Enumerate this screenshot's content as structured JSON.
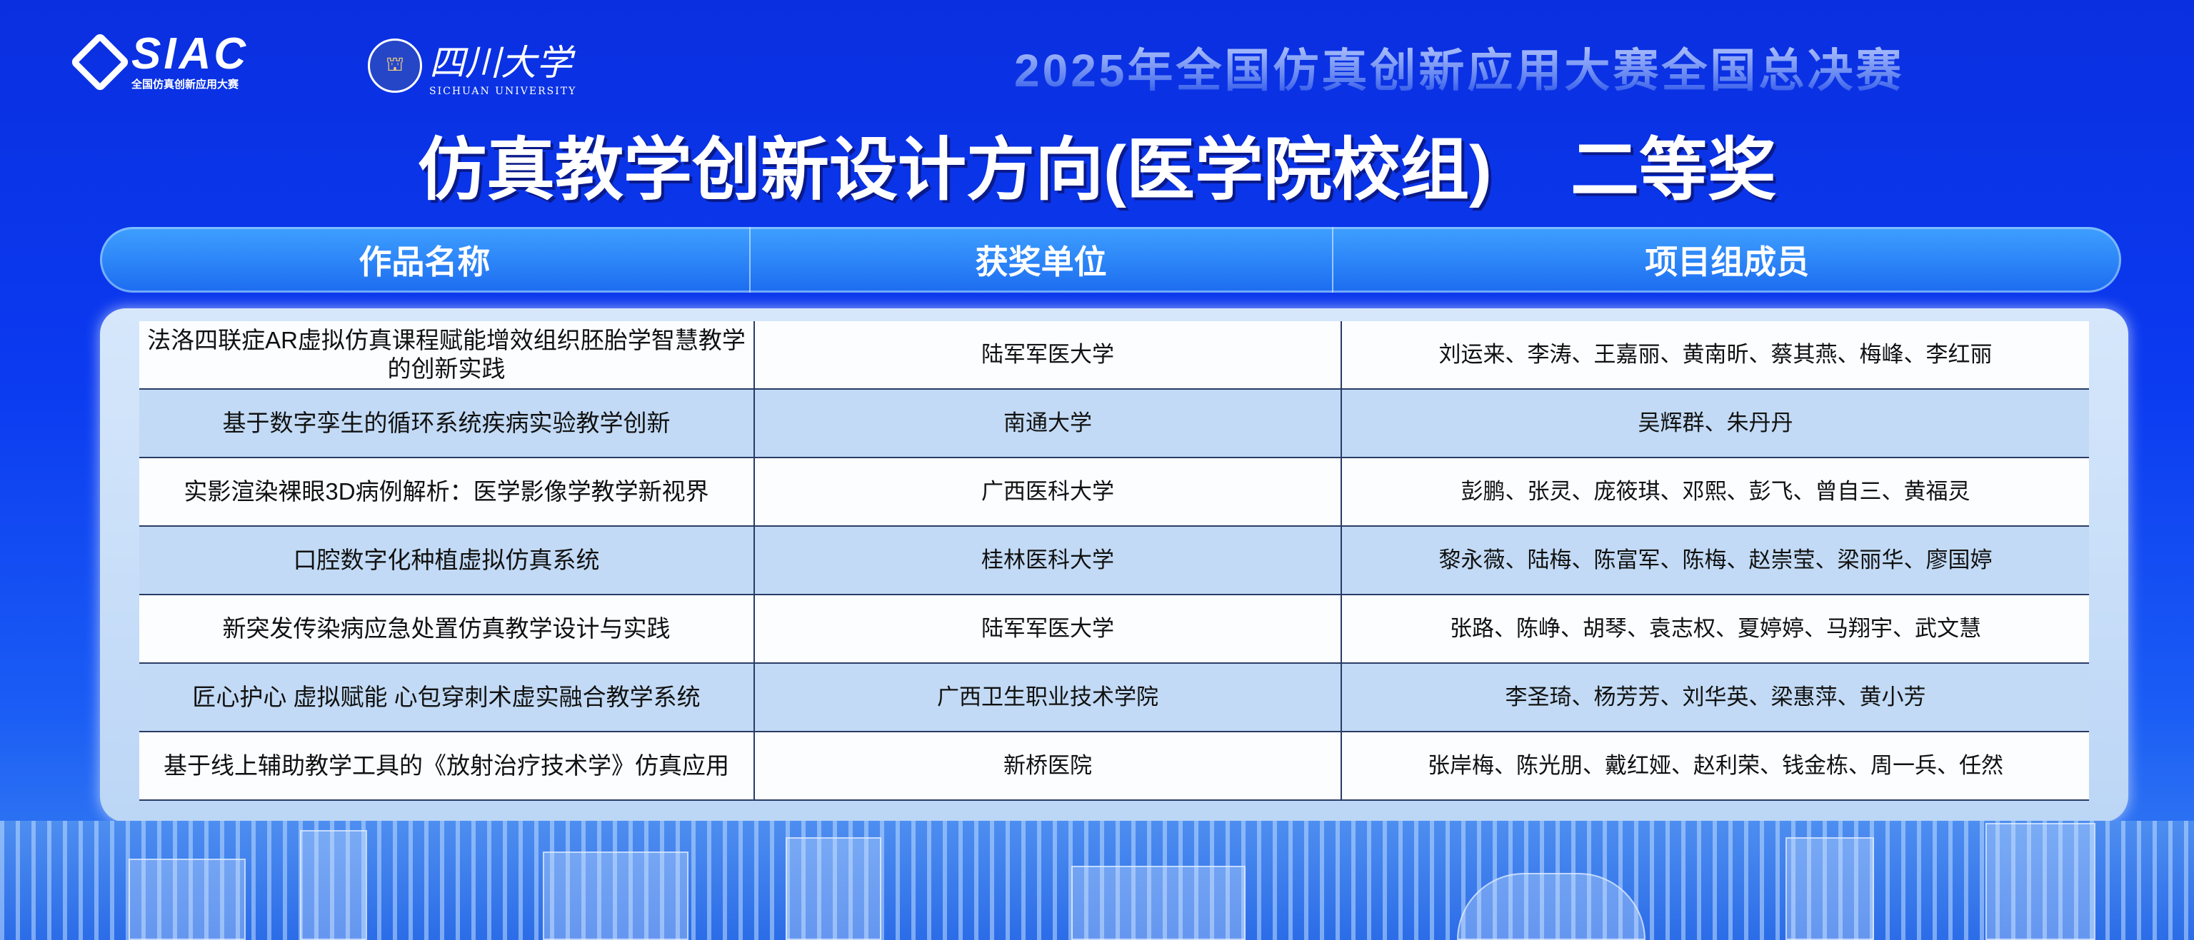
{
  "branding": {
    "siac_logo_text": "SIAC",
    "siac_logo_subtext": "全国仿真创新应用大赛",
    "university_logo_text": "四川大学",
    "university_logo_subtext": "SICHUAN UNIVERSITY"
  },
  "event_title": "2025年全国仿真创新应用大赛全国总决赛",
  "main_title": {
    "category": "仿真教学创新设计方向(医学院校组)",
    "award": "二等奖"
  },
  "table": {
    "headers": [
      "作品名称",
      "获奖单位",
      "项目组成员"
    ],
    "rows": [
      {
        "project": "法洛四联症AR虚拟仿真课程赋能增效组织胚胎学智慧教学的创新实践",
        "unit": "陆军军医大学",
        "members": "刘运来、李涛、王嘉丽、黄南昕、蔡其燕、梅峰、李红丽"
      },
      {
        "project": "基于数字孪生的循环系统疾病实验教学创新",
        "unit": "南通大学",
        "members": "吴辉群、朱丹丹"
      },
      {
        "project": "实影渲染裸眼3D病例解析：医学影像学教学新视界",
        "unit": "广西医科大学",
        "members": "彭鹏、张灵、庞筱琪、邓熙、彭飞、曾自三、黄福灵"
      },
      {
        "project": "口腔数字化种植虚拟仿真系统",
        "unit": "桂林医科大学",
        "members": "黎永薇、陆梅、陈富军、陈梅、赵崇莹、梁丽华、廖国婷"
      },
      {
        "project": "新突发传染病应急处置仿真教学设计与实践",
        "unit": "陆军军医大学",
        "members": "张路、陈峥、胡琴、袁志权、夏婷婷、马翔宇、武文慧"
      },
      {
        "project": "匠心护心 虚拟赋能 心包穿刺术虚实融合教学系统",
        "unit": "广西卫生职业技术学院",
        "members": "李圣琦、杨芳芳、刘华英、梁惠萍、黄小芳"
      },
      {
        "project": "基于线上辅助教学工具的《放射治疗技术学》仿真应用",
        "unit": "新桥医院",
        "members": "张岸梅、陈光朋、戴红娅、赵利荣、钱金栋、周一兵、任然"
      }
    ]
  },
  "colors": {
    "background": "#0b3af0",
    "header_bar": "#1c6cf0",
    "row_light": "#fbfdff",
    "row_blue": "#c2daf5"
  }
}
